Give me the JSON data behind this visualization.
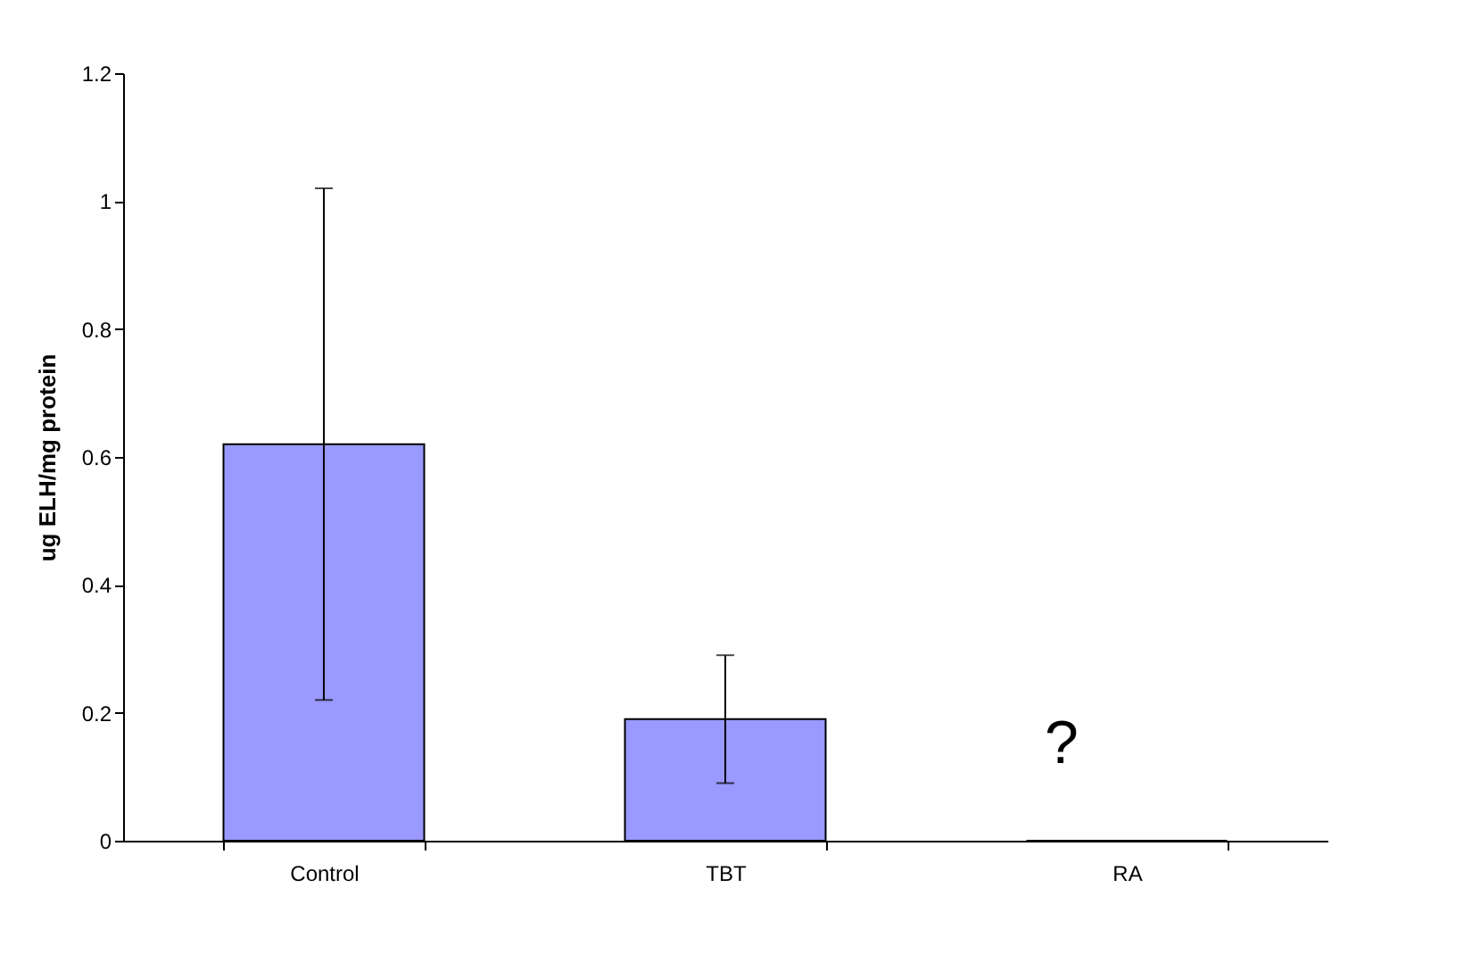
{
  "chart_data": {
    "type": "bar",
    "ylabel": "ug ELH/mg protein",
    "categories": [
      "Control",
      "TBT",
      "RA"
    ],
    "values": [
      0.62,
      0.19,
      0
    ],
    "errors": [
      0.4,
      0.1,
      null
    ],
    "color": "#9999ff",
    "ylim": [
      0,
      1.2
    ],
    "yticks": [
      0,
      0.2,
      0.4,
      0.6,
      0.8,
      1,
      1.2
    ],
    "grid": false,
    "annotations": [
      "?"
    ]
  }
}
